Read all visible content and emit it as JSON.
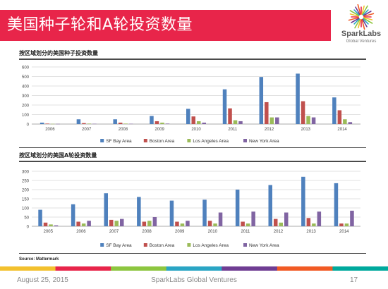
{
  "slide": {
    "title": "美国种子轮和A轮投资数量",
    "logo": {
      "name": "SparkLabs",
      "subtitle": "Global Ventures"
    },
    "source": "Source:  Mattermark",
    "footer": {
      "date": "August 25, 2015",
      "organization": "SparkLabs Global Ventures",
      "page": "17"
    }
  },
  "colors": {
    "title_bar": "#e8254a",
    "footer_segments": [
      "#f3c12e",
      "#e8254a",
      "#8dc63f",
      "#2aa5c4",
      "#6f3d93",
      "#f15a24",
      "#00a99d"
    ]
  },
  "chart_data": [
    {
      "type": "bar",
      "title": "按区域划分的美国种子投资数量",
      "categories": [
        "2006",
        "2007",
        "2008",
        "2009",
        "2010",
        "2011",
        "2012",
        "2013",
        "2014"
      ],
      "ylim": [
        0,
        600
      ],
      "yticks": [
        0,
        100,
        200,
        300,
        400,
        500,
        600
      ],
      "grid": true,
      "legend": "bottom",
      "series": [
        {
          "name": "SF Bay Area",
          "color": "#4f81bd",
          "values": [
            15,
            50,
            50,
            85,
            160,
            365,
            495,
            530,
            280
          ]
        },
        {
          "name": "Boston Area",
          "color": "#c0504d",
          "values": [
            5,
            10,
            15,
            30,
            80,
            165,
            230,
            240,
            145
          ]
        },
        {
          "name": "Los Angeles Area",
          "color": "#9bbb59",
          "values": [
            2,
            5,
            5,
            15,
            30,
            40,
            70,
            85,
            50
          ]
        },
        {
          "name": "New York Area",
          "color": "#8064a2",
          "values": [
            2,
            3,
            3,
            5,
            15,
            30,
            70,
            70,
            20
          ]
        }
      ]
    },
    {
      "type": "bar",
      "title": "按区域划分的美国A轮投资数量",
      "categories": [
        "2005",
        "2006",
        "2007",
        "2008",
        "2009",
        "2010",
        "2011",
        "2012",
        "2013",
        "2014"
      ],
      "ylim": [
        0,
        300
      ],
      "yticks": [
        0,
        50,
        100,
        150,
        200,
        250,
        300
      ],
      "grid": true,
      "legend": "bottom",
      "series": [
        {
          "name": "SF Bay Area",
          "color": "#4f81bd",
          "values": [
            90,
            120,
            180,
            160,
            140,
            145,
            200,
            225,
            270,
            235
          ]
        },
        {
          "name": "Boston Area",
          "color": "#c0504d",
          "values": [
            20,
            25,
            35,
            25,
            25,
            30,
            25,
            40,
            45,
            15
          ]
        },
        {
          "name": "Los Angeles Area",
          "color": "#9bbb59",
          "values": [
            10,
            15,
            30,
            30,
            15,
            15,
            15,
            20,
            15,
            15
          ]
        },
        {
          "name": "New York Area",
          "color": "#8064a2",
          "values": [
            5,
            30,
            40,
            50,
            30,
            75,
            80,
            75,
            80,
            85
          ]
        }
      ]
    }
  ]
}
